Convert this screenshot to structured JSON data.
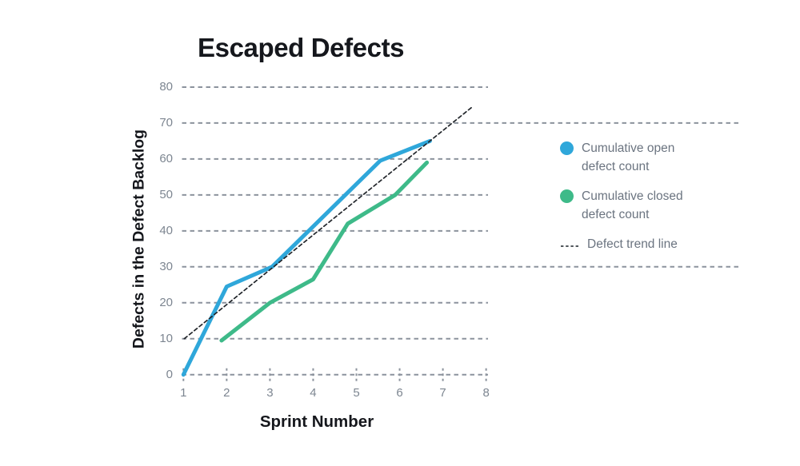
{
  "chart_data": {
    "type": "line",
    "title": "Escaped Defects",
    "xlabel": "Sprint Number",
    "ylabel": "Defects in the Defect Backlog",
    "xlim": [
      1,
      8
    ],
    "ylim": [
      0,
      80
    ],
    "xticks": [
      1,
      2,
      3,
      4,
      5,
      6,
      7,
      8
    ],
    "yticks": [
      0,
      10,
      20,
      30,
      40,
      50,
      60,
      70,
      80
    ],
    "grid": "horizontal-dashed",
    "extended_gridlines": [
      30,
      70
    ],
    "legend_position": "right",
    "series": [
      {
        "name": "Cumulative open defect count",
        "color": "#2fa7da",
        "style": "solid",
        "points": [
          [
            1,
            0
          ],
          [
            2,
            24.5
          ],
          [
            3.05,
            30
          ],
          [
            5.55,
            59.5
          ],
          [
            6.7,
            65
          ]
        ]
      },
      {
        "name": "Cumulative closed defect count",
        "color": "#3eba89",
        "style": "solid",
        "points": [
          [
            1.88,
            9.5
          ],
          [
            3,
            20
          ],
          [
            4,
            26.5
          ],
          [
            4.8,
            42
          ],
          [
            5.9,
            50
          ],
          [
            6.63,
            59
          ]
        ]
      },
      {
        "name": "Defect trend line",
        "color": "#22262b",
        "style": "dashed",
        "points": [
          [
            1.02,
            10
          ],
          [
            7.68,
            74.5
          ]
        ]
      }
    ]
  },
  "legend": {
    "items": [
      {
        "label": "Cumulative open defect count",
        "swatch": "dot",
        "color": "#2fa7da"
      },
      {
        "label": "Cumulative closed defect count",
        "swatch": "dot",
        "color": "#3eba89"
      },
      {
        "label": "Defect trend line",
        "swatch": "dashed-line",
        "color": "#3a4046"
      }
    ]
  },
  "colors": {
    "background": "#ffffff",
    "gridline": "#8c939d",
    "tick_text": "#7d8691",
    "legend_text": "#6b7480",
    "heading_text": "#15171c"
  }
}
